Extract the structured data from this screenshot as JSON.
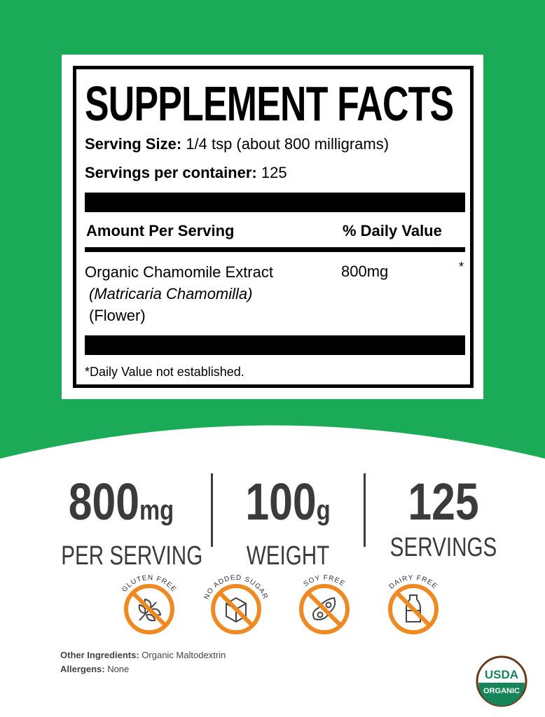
{
  "colors": {
    "brand_green": "#1bab57",
    "badge_orange": "#ef8a23",
    "stat_text": "#3b3b3b",
    "usda_green": "#17855a",
    "usda_brown": "#6b3a1c"
  },
  "facts": {
    "title": "SUPPLEMENT FACTS",
    "serving_size_label": "Serving Size:",
    "serving_size_value": " 1/4 tsp (about 800 milligrams)",
    "servings_label": "Servings per container:",
    "servings_value": " 125",
    "col_amount": "Amount Per Serving",
    "col_dv": "% Daily Value",
    "ingredient": {
      "name": "Organic Chamomile Extract",
      "latin": "(Matricaria Chamomilla)",
      "part": "(Flower)",
      "amount": "800mg",
      "dv": "*"
    },
    "footnote": "*Daily Value not established."
  },
  "stats": [
    {
      "value": "800",
      "unit": "mg",
      "label": "PER SERVING"
    },
    {
      "value": "100",
      "unit": "g",
      "label": "WEIGHT"
    },
    {
      "value": "125",
      "unit": "",
      "label": "SERVINGS"
    }
  ],
  "badges": [
    {
      "label": "GLUTEN FREE",
      "icon": "wheat-icon"
    },
    {
      "label": "NO ADDED SUGAR",
      "icon": "sugar-cube-icon"
    },
    {
      "label": "SOY FREE",
      "icon": "soybean-icon"
    },
    {
      "label": "DAIRY FREE",
      "icon": "milk-bottle-icon"
    }
  ],
  "footer": {
    "other_label": "Other Ingredients:",
    "other_value": " Organic Maltodextrin",
    "allergens_label": "Allergens:",
    "allergens_value": " None"
  },
  "seal": {
    "top": "USDA",
    "bottom": "ORGANIC"
  }
}
